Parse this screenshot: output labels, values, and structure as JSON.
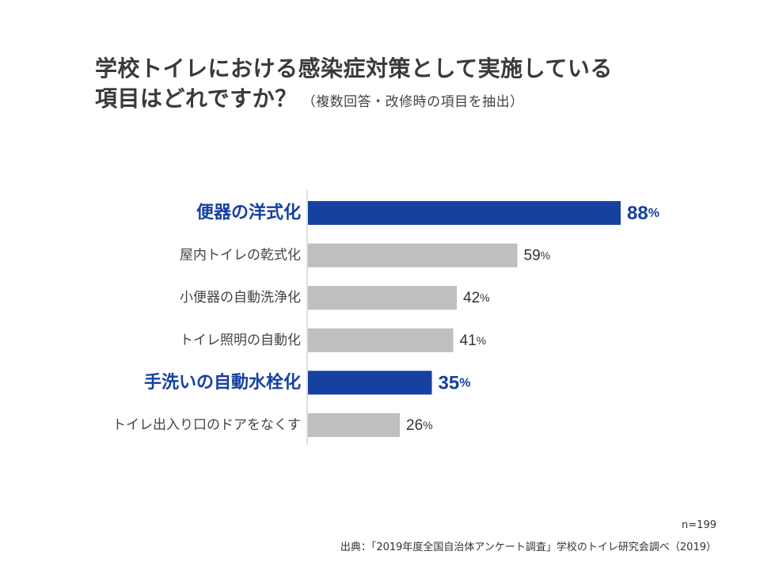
{
  "title": {
    "line1": "学校トイレにおける感染症対策として実施している",
    "line2": "項目はどれですか？",
    "note": "（複数回答・改修時の項目を抽出）"
  },
  "chart_data": {
    "type": "bar",
    "orientation": "horizontal",
    "categories": [
      "便器の洋式化",
      "屋内トイレの乾式化",
      "小便器の自動洗浄化",
      "トイレ照明の自動化",
      "手洗いの自動水栓化",
      "トイレ出入り口のドアをなくす"
    ],
    "values": [
      88,
      59,
      42,
      41,
      35,
      26
    ],
    "value_labels": [
      "88",
      "59",
      "42",
      "41",
      "35",
      "26"
    ],
    "unit": "%",
    "highlighted": [
      true,
      false,
      false,
      false,
      true,
      false
    ],
    "xlim": [
      0,
      100
    ],
    "grid": false
  },
  "colors": {
    "highlight": "#1641a0",
    "normal": "#bfbfbf",
    "axis": "#bfbfbf",
    "label_normal": "#444444"
  },
  "footer": {
    "sample_size": "n=199",
    "source": "出典：「2019年度全国自治体アンケート調査」学校のトイレ研究会調べ（2019）"
  }
}
